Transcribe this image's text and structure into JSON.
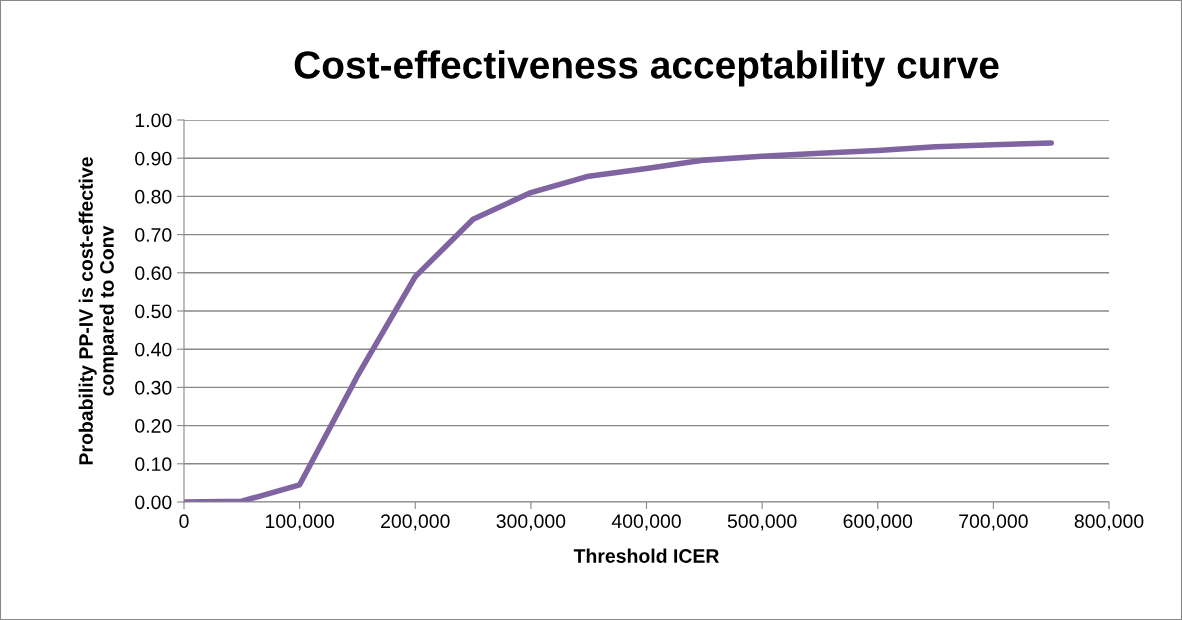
{
  "chart_data": {
    "type": "line",
    "title": "Cost-effectiveness acceptability curve",
    "xlabel": "Threshold ICER",
    "ylabel": "Probability PP-IV is cost-effective\ncompared to Conv",
    "x": [
      0,
      50000,
      100000,
      150000,
      200000,
      250000,
      300000,
      350000,
      400000,
      450000,
      500000,
      550000,
      600000,
      650000,
      700000,
      750000
    ],
    "series": [
      {
        "color": "#8064a2",
        "values": [
          0,
          0.002,
          0.045,
          0.33,
          0.59,
          0.74,
          0.81,
          0.853,
          0.873,
          0.895,
          0.905,
          0.913,
          0.92,
          0.93,
          0.935,
          0.94
        ]
      }
    ],
    "xlim": [
      0,
      800000
    ],
    "ylim": [
      0,
      1
    ],
    "xticks": [
      0,
      {
        "value": 100000,
        "label": "100,000"
      },
      {
        "value": 200000,
        "label": "200,000"
      },
      {
        "value": 300000,
        "label": "300,000"
      },
      {
        "value": 400000,
        "label": "400,000"
      },
      {
        "value": 500000,
        "label": "500,000"
      },
      {
        "value": 600000,
        "label": "600,000"
      },
      {
        "value": 700000,
        "label": "700,000"
      },
      {
        "value": 800000,
        "label": "800,000"
      }
    ],
    "yticks": [
      {
        "value": 0,
        "label": "0.00"
      },
      {
        "value": 0.1,
        "label": "0.10"
      },
      {
        "value": 0.2,
        "label": "0.20"
      },
      {
        "value": 0.3,
        "label": "0.30"
      },
      {
        "value": 0.4,
        "label": "0.40"
      },
      {
        "value": 0.5,
        "label": "0.50"
      },
      {
        "value": 0.6,
        "label": "0.60"
      },
      {
        "value": 0.7,
        "label": "0.70"
      },
      {
        "value": 0.8,
        "label": "0.80"
      },
      {
        "value": 0.9,
        "label": "0.90"
      },
      {
        "value": 1,
        "label": "1.00"
      }
    ],
    "grid": "y",
    "marker": "none",
    "line_style": "solid",
    "legend": false
  }
}
